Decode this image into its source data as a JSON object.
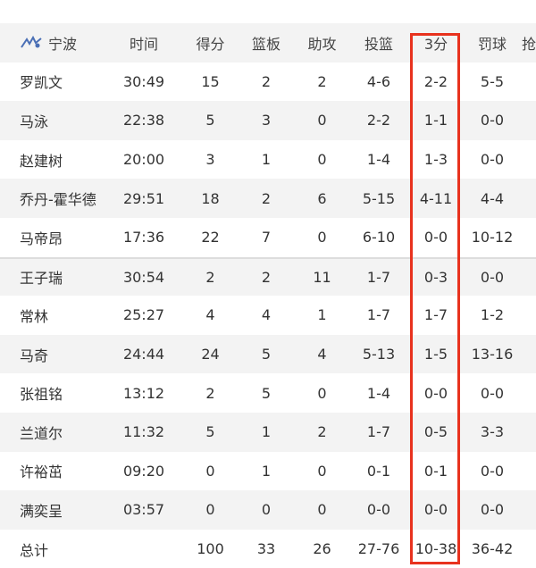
{
  "team": {
    "name": "宁波",
    "logo_icon": "team-logo-icon"
  },
  "columns": [
    "时间",
    "得分",
    "篮板",
    "助攻",
    "投篮",
    "3分",
    "罚球",
    "抢"
  ],
  "highlight_color": "#e8321e",
  "players": [
    [
      "罗凯文",
      "30:49",
      "15",
      "2",
      "2",
      "4-6",
      "2-2",
      "5-5"
    ],
    [
      "马泳",
      "22:38",
      "5",
      "3",
      "0",
      "2-2",
      "1-1",
      "0-0"
    ],
    [
      "赵建树",
      "20:00",
      "3",
      "1",
      "0",
      "1-4",
      "1-3",
      "0-0"
    ],
    [
      "乔丹-霍华德",
      "29:51",
      "18",
      "2",
      "6",
      "5-15",
      "4-11",
      "4-4"
    ],
    [
      "马帝昂",
      "17:36",
      "22",
      "7",
      "0",
      "6-10",
      "0-0",
      "10-12"
    ],
    [
      "王子瑞",
      "30:54",
      "2",
      "2",
      "11",
      "1-7",
      "0-3",
      "0-0"
    ],
    [
      "常林",
      "25:27",
      "4",
      "4",
      "1",
      "1-7",
      "1-7",
      "1-2"
    ],
    [
      "马奇",
      "24:44",
      "24",
      "5",
      "4",
      "5-13",
      "1-5",
      "13-16"
    ],
    [
      "张祖铭",
      "13:12",
      "2",
      "5",
      "0",
      "1-4",
      "0-0",
      "0-0"
    ],
    [
      "兰道尔",
      "11:32",
      "5",
      "1",
      "2",
      "1-7",
      "0-5",
      "3-3"
    ],
    [
      "许裕茁",
      "09:20",
      "0",
      "1",
      "0",
      "0-1",
      "0-1",
      "0-0"
    ],
    [
      "满奕呈",
      "03:57",
      "0",
      "0",
      "0",
      "0-0",
      "0-0",
      "0-0"
    ]
  ],
  "total": [
    "总计",
    "",
    "100",
    "33",
    "26",
    "27-76",
    "10-38",
    "36-42"
  ]
}
